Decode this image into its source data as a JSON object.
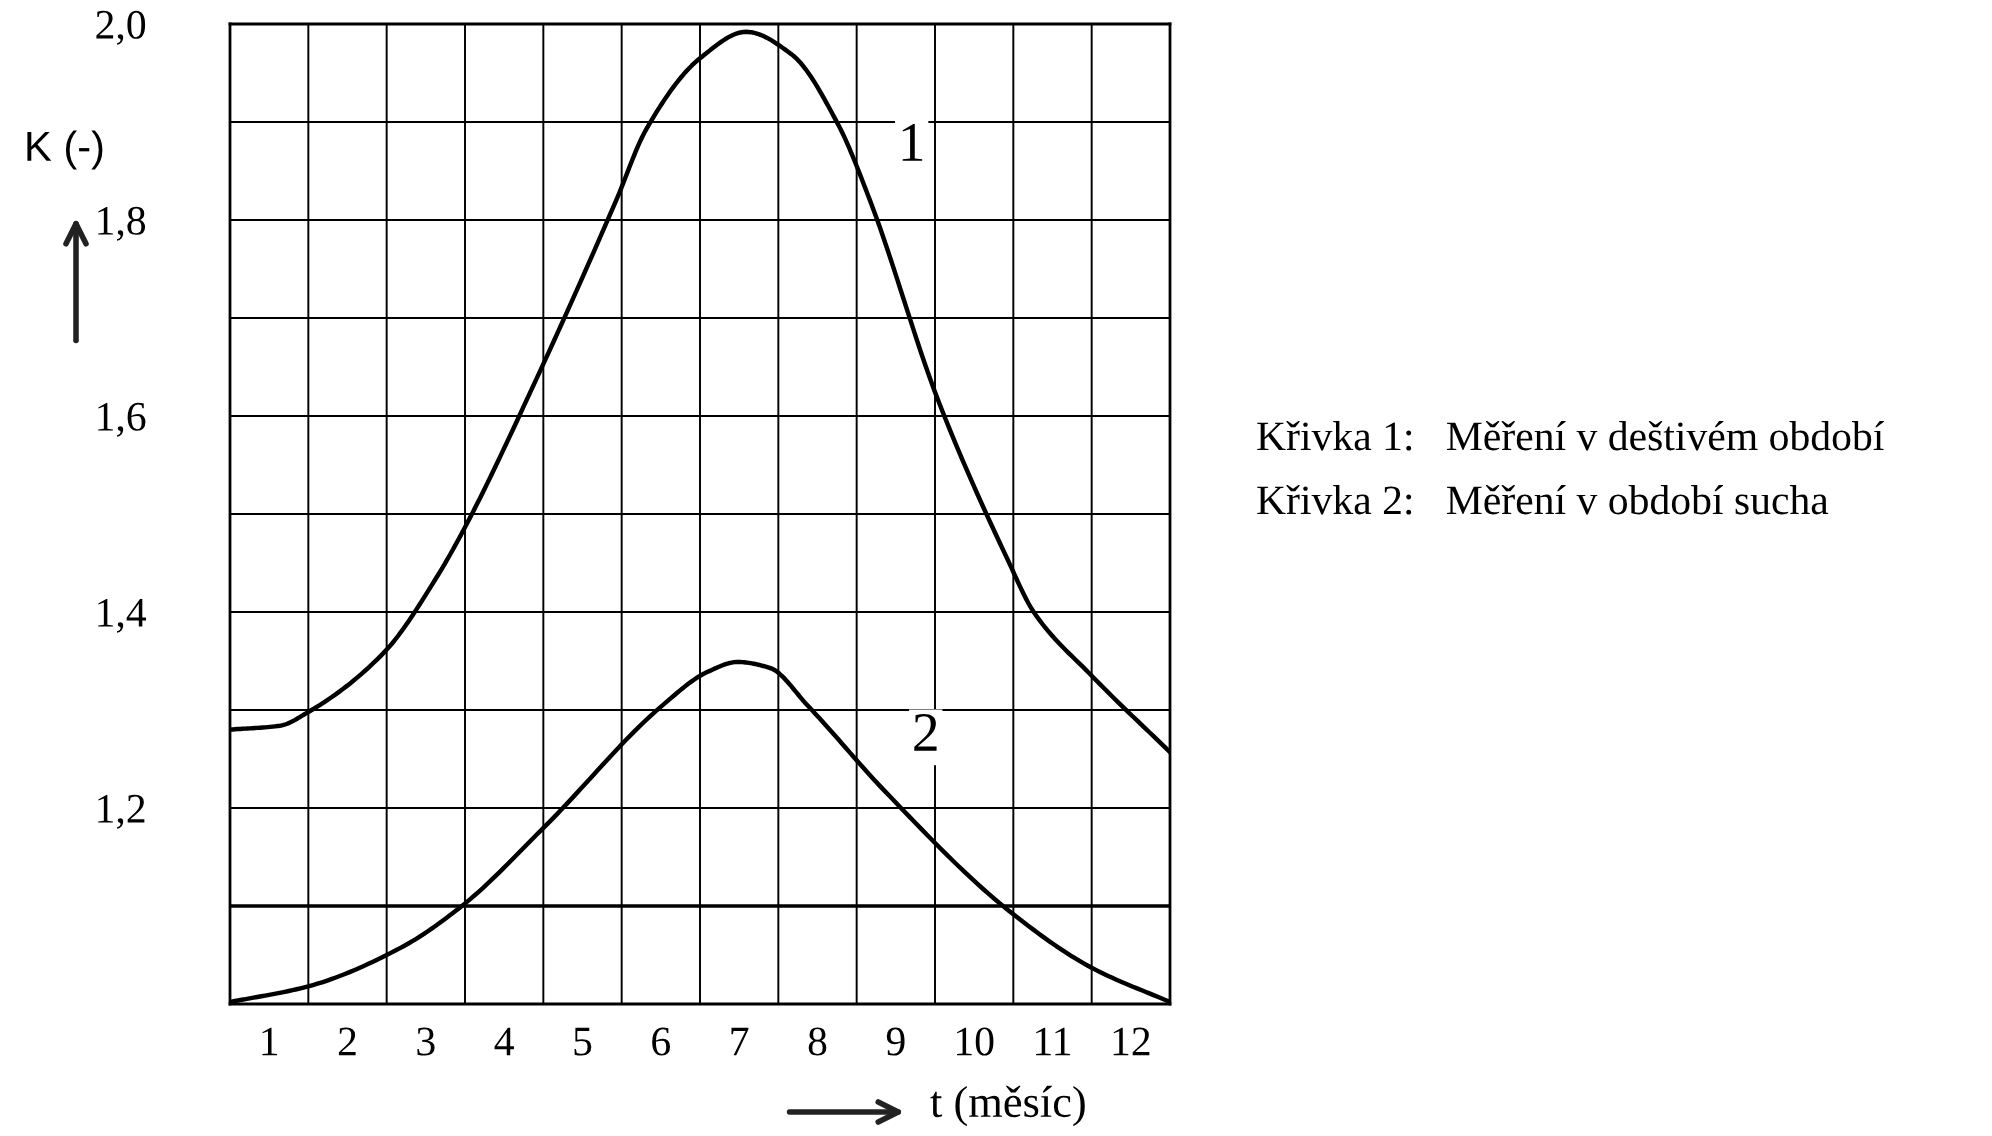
{
  "chart_data": {
    "type": "line",
    "xlabel": "t (měsíc)",
    "ylabel": "K (-)",
    "xlim": [
      0.5,
      12.5
    ],
    "ylim": [
      1.0,
      2.0
    ],
    "xticks": [
      {
        "value": 0.5,
        "label": null
      },
      1,
      {
        "value": 1.5,
        "label": null
      },
      2,
      {
        "value": 2.5,
        "label": null
      },
      3,
      {
        "value": 3.5,
        "label": null
      },
      4,
      {
        "value": 4.5,
        "label": null
      },
      5,
      {
        "value": 5.5,
        "label": null
      },
      6,
      {
        "value": 6.5,
        "label": null
      },
      7,
      {
        "value": 7.5,
        "label": null
      },
      8,
      {
        "value": 8.5,
        "label": null
      },
      9,
      {
        "value": 9.5,
        "label": null
      },
      10,
      {
        "value": 10.5,
        "label": null
      },
      11,
      {
        "value": 11.5,
        "label": null
      },
      12,
      {
        "value": 12.5,
        "label": null
      }
    ],
    "yticks": [
      {
        "value": 1.0,
        "label": null
      },
      {
        "value": 1.1,
        "label": null
      },
      {
        "value": 1.2,
        "label": "1,2"
      },
      {
        "value": 1.3,
        "label": null
      },
      {
        "value": 1.4,
        "label": "1,4"
      },
      {
        "value": 1.5,
        "label": null
      },
      {
        "value": 1.6,
        "label": "1,6"
      },
      {
        "value": 1.7,
        "label": null
      },
      {
        "value": 1.8,
        "label": "1,8"
      },
      {
        "value": 1.9,
        "label": null
      },
      {
        "value": 2.0,
        "label": "2,0"
      }
    ],
    "grid": true,
    "marker": "none",
    "line_style": "solid",
    "ref_lines": [
      {
        "axis": "y",
        "value": 1.1,
        "color": "#000000"
      }
    ],
    "series": [
      {
        "color": "#000000",
        "x": [
          0.5,
          1.14,
          1.5,
          2.47,
          3.15,
          3.51,
          4.43,
          5.43,
          5.81,
          6.5,
          7.09,
          7.67,
          8.26,
          8.67,
          9.54,
          10.43,
          10.76,
          11.5,
          12.5
        ],
        "values": [
          1.28,
          1.284,
          1.298,
          1.359,
          1.437,
          1.488,
          1.641,
          1.82,
          1.892,
          1.965,
          1.992,
          1.969,
          1.898,
          1.82,
          1.616,
          1.453,
          1.4,
          1.335,
          1.257
        ]
      },
      {
        "color": "#000000",
        "x": [
          0.5,
          1.5,
          2.67,
          3.46,
          4.53,
          6.01,
          6.6,
          6.98,
          7.39,
          7.88,
          8.85,
          10.43,
          11.5,
          12.5
        ],
        "values": [
          1.002,
          1.018,
          1.057,
          1.1,
          1.182,
          1.304,
          1.339,
          1.349,
          1.343,
          1.304,
          1.218,
          1.096,
          1.037,
          1.002
        ]
      }
    ],
    "annotations": [
      {
        "text": "1",
        "x": 8.67,
        "y": 1.82
      },
      {
        "text": "2",
        "x": 8.85,
        "y": 1.218
      },
      "Křivka 1:   Měření v deštivém období",
      "Křivka 2:   Měření v období sucha"
    ]
  }
}
